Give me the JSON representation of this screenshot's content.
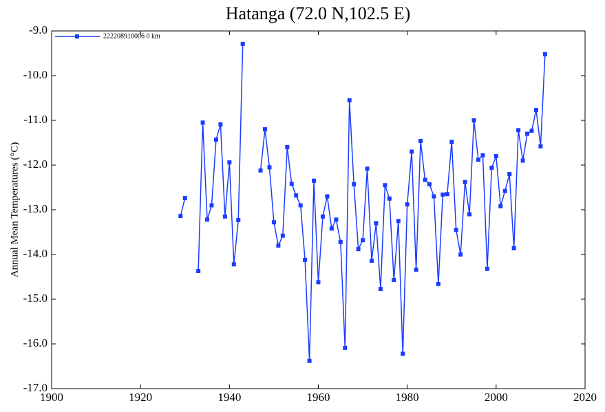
{
  "chart_data": {
    "type": "line",
    "title": "Hatanga (72.0 N,102.5 E)",
    "ylabel": "Annual Mean Temperatures (°C)",
    "x": [
      1929,
      1930,
      1931,
      1932,
      1933,
      1934,
      1935,
      1936,
      1937,
      1938,
      1939,
      1940,
      1941,
      1942,
      1943,
      1944,
      1945,
      1946,
      1947,
      1948,
      1949,
      1950,
      1951,
      1952,
      1953,
      1954,
      1955,
      1956,
      1957,
      1958,
      1959,
      1960,
      1961,
      1962,
      1963,
      1964,
      1965,
      1966,
      1967,
      1968,
      1969,
      1970,
      1971,
      1972,
      1973,
      1974,
      1975,
      1976,
      1977,
      1978,
      1979,
      1980,
      1981,
      1982,
      1983,
      1984,
      1985,
      1986,
      1987,
      1988,
      1989,
      1990,
      1991,
      1992,
      1993,
      1994,
      1995,
      1996,
      1997,
      1998,
      1999,
      2000,
      2001,
      2002,
      2003,
      2004,
      2005,
      2006,
      2007,
      2008,
      2009,
      2010,
      2011
    ],
    "series": [
      {
        "name": "222208910006  0 km",
        "color": "#1a3cff",
        "values": [
          -13.14,
          -12.74,
          null,
          null,
          -14.37,
          -11.05,
          -13.22,
          -12.9,
          -11.43,
          -11.09,
          -13.15,
          -11.94,
          -14.22,
          -13.23,
          -9.29,
          null,
          null,
          null,
          -12.12,
          -11.2,
          -12.05,
          -13.28,
          -13.8,
          -13.58,
          -11.6,
          -12.42,
          -12.68,
          -12.9,
          -14.12,
          -16.38,
          -12.35,
          -14.62,
          -13.15,
          -12.7,
          -13.42,
          -13.22,
          -13.72,
          -16.09,
          -10.55,
          -12.43,
          -13.88,
          -13.68,
          -12.08,
          -14.14,
          -13.3,
          -14.77,
          -12.45,
          -12.75,
          -14.57,
          -13.25,
          -16.22,
          -12.88,
          -11.7,
          -14.34,
          -11.46,
          -12.33,
          -12.43,
          -12.7,
          -14.66,
          -12.66,
          -12.65,
          -11.48,
          -13.45,
          -14.0,
          -12.38,
          -13.1,
          -11.0,
          -11.88,
          -11.78,
          -14.32,
          -12.06,
          -11.8,
          -12.92,
          -12.58,
          -12.2,
          -13.86,
          -11.22,
          -11.9,
          -11.3,
          -11.23,
          -10.77,
          -11.58,
          -9.52
        ]
      }
    ],
    "xlim": [
      1900,
      2020
    ],
    "xticks": [
      1900,
      1920,
      1940,
      1960,
      1980,
      2000,
      2020
    ],
    "ylim": [
      -17,
      -9
    ],
    "yticks": [
      {
        "value": -17,
        "label": "-17.0"
      },
      {
        "value": -16,
        "label": "-16.0"
      },
      {
        "value": -15,
        "label": "-15.0"
      },
      {
        "value": -14,
        "label": "-14.0"
      },
      {
        "value": -13,
        "label": "-13.0"
      },
      {
        "value": -12,
        "label": "-12.0"
      },
      {
        "value": -11,
        "label": "-11.0"
      },
      {
        "value": -10,
        "label": "-10.0"
      },
      {
        "value": -9,
        "label": "-9.0"
      }
    ],
    "legend": "upper left",
    "grid": false
  }
}
